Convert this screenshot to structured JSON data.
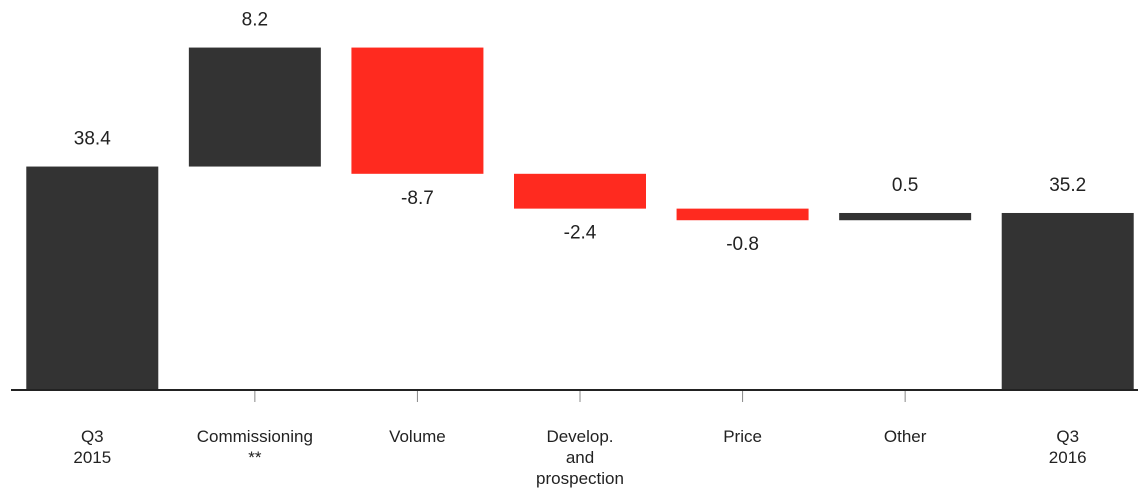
{
  "chart_data": {
    "type": "waterfall",
    "categories": [
      "Q3\n2015",
      "Commissioning\n**",
      "Volume",
      "Develop.\nand\nprospection",
      "Price",
      "Other",
      "Q3\n2016"
    ],
    "values": [
      38.4,
      8.2,
      -8.7,
      -2.4,
      -0.8,
      0.5,
      35.2
    ],
    "totals": [
      true,
      false,
      false,
      false,
      false,
      false,
      true
    ],
    "colors": {
      "total": "#333333",
      "increase": "#333333",
      "decrease": "#ff2a1f"
    },
    "ylim": [
      23,
      48.5
    ]
  }
}
